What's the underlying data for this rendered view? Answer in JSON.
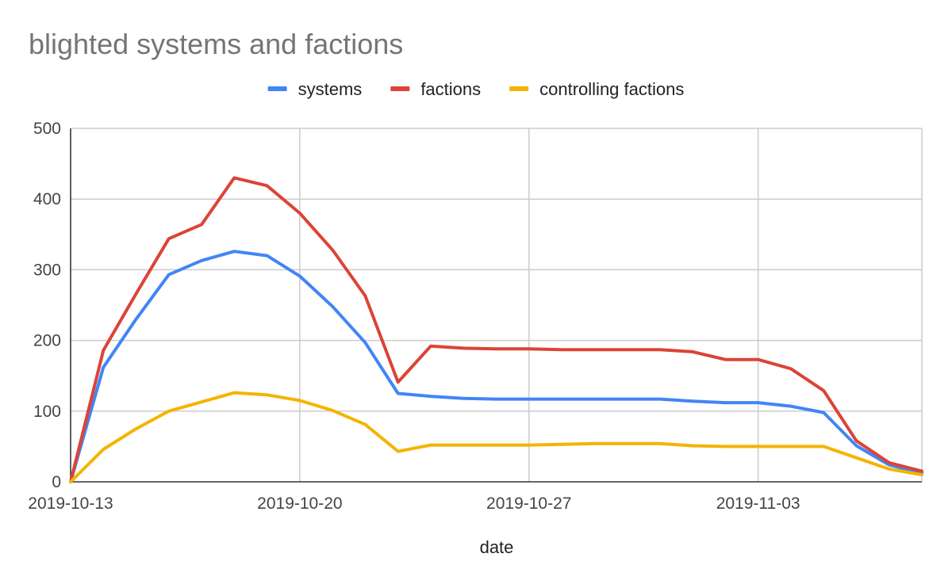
{
  "chart_data": {
    "type": "line",
    "title": "blighted systems and factions",
    "xlabel": "date",
    "ylabel": "",
    "ylim": [
      0,
      500
    ],
    "yticks": [
      0,
      100,
      200,
      300,
      400,
      500
    ],
    "xlim": [
      "2019-10-13",
      "2019-11-08"
    ],
    "xtick_labels": [
      "2019-10-13",
      "2019-10-20",
      "2019-10-27",
      "2019-11-03"
    ],
    "grid": true,
    "legend_position": "top",
    "x": [
      "2019-10-13",
      "2019-10-14",
      "2019-10-15",
      "2019-10-16",
      "2019-10-17",
      "2019-10-18",
      "2019-10-19",
      "2019-10-20",
      "2019-10-21",
      "2019-10-22",
      "2019-10-23",
      "2019-10-24",
      "2019-10-25",
      "2019-10-26",
      "2019-10-27",
      "2019-10-28",
      "2019-10-29",
      "2019-10-30",
      "2019-10-31",
      "2019-11-01",
      "2019-11-02",
      "2019-11-03",
      "2019-11-04",
      "2019-11-05",
      "2019-11-06",
      "2019-11-07",
      "2019-11-08"
    ],
    "series": [
      {
        "name": "systems",
        "color": "#4285f4",
        "values": [
          0,
          162,
          230,
          293,
          313,
          326,
          320,
          291,
          248,
          197,
          125,
          121,
          118,
          117,
          117,
          117,
          117,
          117,
          117,
          114,
          112,
          112,
          107,
          98,
          51,
          24,
          12
        ]
      },
      {
        "name": "factions",
        "color": "#db4437",
        "values": [
          0,
          186,
          266,
          344,
          364,
          430,
          419,
          380,
          328,
          263,
          141,
          192,
          189,
          188,
          188,
          187,
          187,
          187,
          187,
          184,
          173,
          173,
          160,
          129,
          58,
          27,
          15
        ]
      },
      {
        "name": "controlling factions",
        "color": "#f4b400",
        "values": [
          0,
          46,
          75,
          100,
          113,
          126,
          123,
          115,
          101,
          81,
          43,
          52,
          52,
          52,
          52,
          53,
          54,
          54,
          54,
          51,
          50,
          50,
          50,
          50,
          34,
          18,
          10
        ]
      }
    ]
  }
}
